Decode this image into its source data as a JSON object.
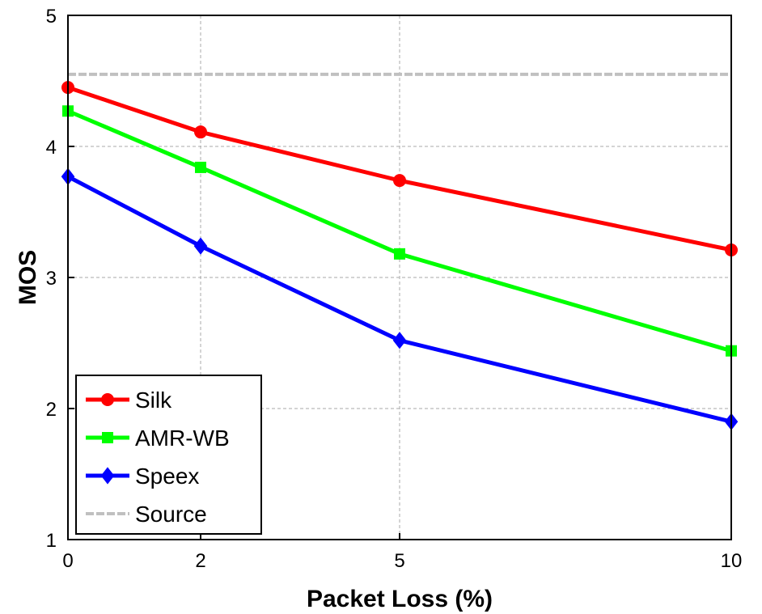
{
  "chart_data": {
    "type": "line",
    "xlabel": "Packet Loss (%)",
    "ylabel": "MOS",
    "x": [
      0,
      2,
      5,
      10
    ],
    "xlim": [
      0,
      10
    ],
    "ylim": [
      1,
      5
    ],
    "xticks": [
      "0",
      "2",
      "5",
      "10"
    ],
    "yticks": [
      "1",
      "2",
      "3",
      "4",
      "5"
    ],
    "grid": true,
    "legend_position": "bottom-left",
    "series": [
      {
        "name": "Silk",
        "values": [
          4.45,
          4.11,
          3.74,
          3.21
        ],
        "color": "#ff0000",
        "marker": "circle"
      },
      {
        "name": "AMR-WB",
        "values": [
          4.27,
          3.84,
          3.18,
          2.44
        ],
        "color": "#00ff00",
        "marker": "square"
      },
      {
        "name": "Speex",
        "values": [
          3.77,
          3.24,
          2.52,
          1.9
        ],
        "color": "#0000ff",
        "marker": "diamond"
      },
      {
        "name": "Source",
        "values": [
          4.55,
          4.55,
          4.55,
          4.55
        ],
        "color": "#c0c0c0",
        "marker": "none",
        "dashed": true
      }
    ]
  }
}
